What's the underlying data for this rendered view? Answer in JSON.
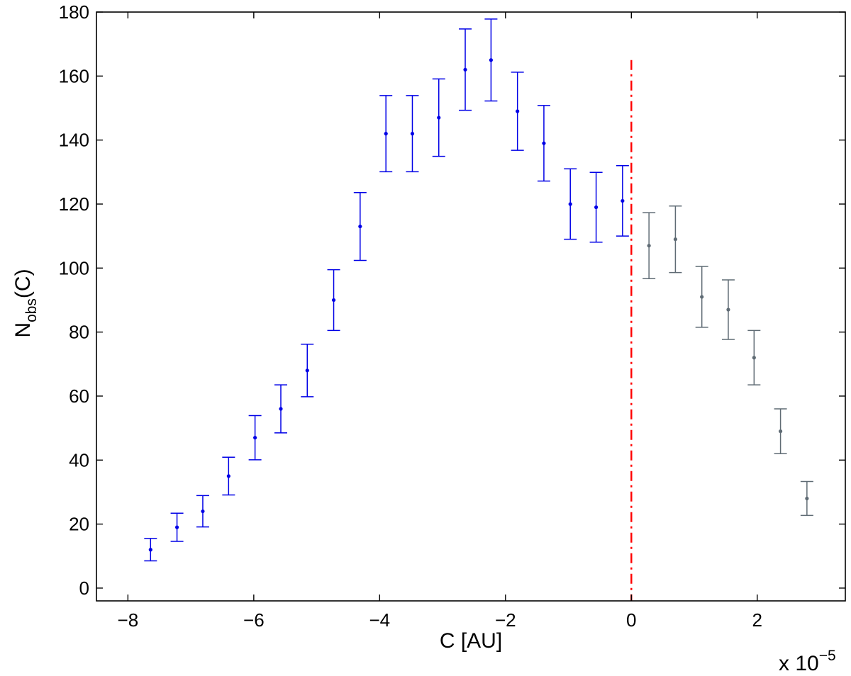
{
  "chart_data": {
    "type": "scatter",
    "title": "",
    "xlabel": "C [AU]",
    "ylabel": {
      "main": "N",
      "sub": "obs",
      "suffix": "(C)"
    },
    "x_multiplier": {
      "prefix": "x 10",
      "exponent": "−5"
    },
    "xlim": [
      -8.5,
      3.4
    ],
    "ylim": [
      -4,
      180
    ],
    "x_ticks": [
      -8,
      -6,
      -4,
      -2,
      0,
      2
    ],
    "x_tick_labels": [
      "−8",
      "−6",
      "−4",
      "−2",
      "0",
      "2"
    ],
    "y_ticks": [
      0,
      20,
      40,
      60,
      80,
      100,
      120,
      140,
      160,
      180
    ],
    "y_tick_labels": [
      "0",
      "20",
      "40",
      "60",
      "80",
      "100",
      "120",
      "140",
      "160",
      "180"
    ],
    "grid": false,
    "vertical_line": {
      "x": 0,
      "y_top": 165,
      "style": "dash-dot",
      "color": "#ff0000"
    },
    "series": [
      {
        "color": "#0000e6",
        "points": [
          {
            "x": -7.64,
            "y": 12,
            "lo": 8.5,
            "hi": 15.5
          },
          {
            "x": -7.22,
            "y": 19,
            "lo": 14.6,
            "hi": 23.4
          },
          {
            "x": -6.81,
            "y": 24,
            "lo": 19.1,
            "hi": 28.9
          },
          {
            "x": -6.4,
            "y": 35,
            "lo": 29.1,
            "hi": 40.9
          },
          {
            "x": -5.98,
            "y": 47,
            "lo": 40.1,
            "hi": 53.9
          },
          {
            "x": -5.57,
            "y": 56,
            "lo": 48.5,
            "hi": 63.5
          },
          {
            "x": -5.15,
            "y": 68,
            "lo": 59.8,
            "hi": 76.2
          },
          {
            "x": -4.73,
            "y": 90,
            "lo": 80.5,
            "hi": 99.5
          },
          {
            "x": -4.31,
            "y": 113,
            "lo": 102.4,
            "hi": 123.6
          },
          {
            "x": -3.9,
            "y": 142,
            "lo": 130.1,
            "hi": 153.9
          },
          {
            "x": -3.48,
            "y": 142,
            "lo": 130.1,
            "hi": 153.9
          },
          {
            "x": -3.06,
            "y": 147,
            "lo": 134.9,
            "hi": 159.1
          },
          {
            "x": -2.64,
            "y": 162,
            "lo": 149.3,
            "hi": 174.7
          },
          {
            "x": -2.23,
            "y": 165,
            "lo": 152.2,
            "hi": 177.8
          },
          {
            "x": -1.81,
            "y": 149,
            "lo": 136.8,
            "hi": 161.2
          },
          {
            "x": -1.39,
            "y": 139,
            "lo": 127.2,
            "hi": 150.8
          },
          {
            "x": -0.97,
            "y": 120,
            "lo": 109.0,
            "hi": 131.0
          },
          {
            "x": -0.56,
            "y": 119,
            "lo": 108.1,
            "hi": 129.9
          },
          {
            "x": -0.14,
            "y": 121,
            "lo": 110.0,
            "hi": 132.0
          }
        ]
      },
      {
        "color": "#5f6b74",
        "points": [
          {
            "x": 0.28,
            "y": 107,
            "lo": 96.7,
            "hi": 117.3
          },
          {
            "x": 0.7,
            "y": 109,
            "lo": 98.6,
            "hi": 119.4
          },
          {
            "x": 1.12,
            "y": 91,
            "lo": 81.5,
            "hi": 100.5
          },
          {
            "x": 1.54,
            "y": 87,
            "lo": 77.7,
            "hi": 96.3
          },
          {
            "x": 1.95,
            "y": 72,
            "lo": 63.5,
            "hi": 80.5
          },
          {
            "x": 2.37,
            "y": 49,
            "lo": 42.0,
            "hi": 56.0
          },
          {
            "x": 2.79,
            "y": 28,
            "lo": 22.7,
            "hi": 33.3
          }
        ]
      }
    ]
  }
}
